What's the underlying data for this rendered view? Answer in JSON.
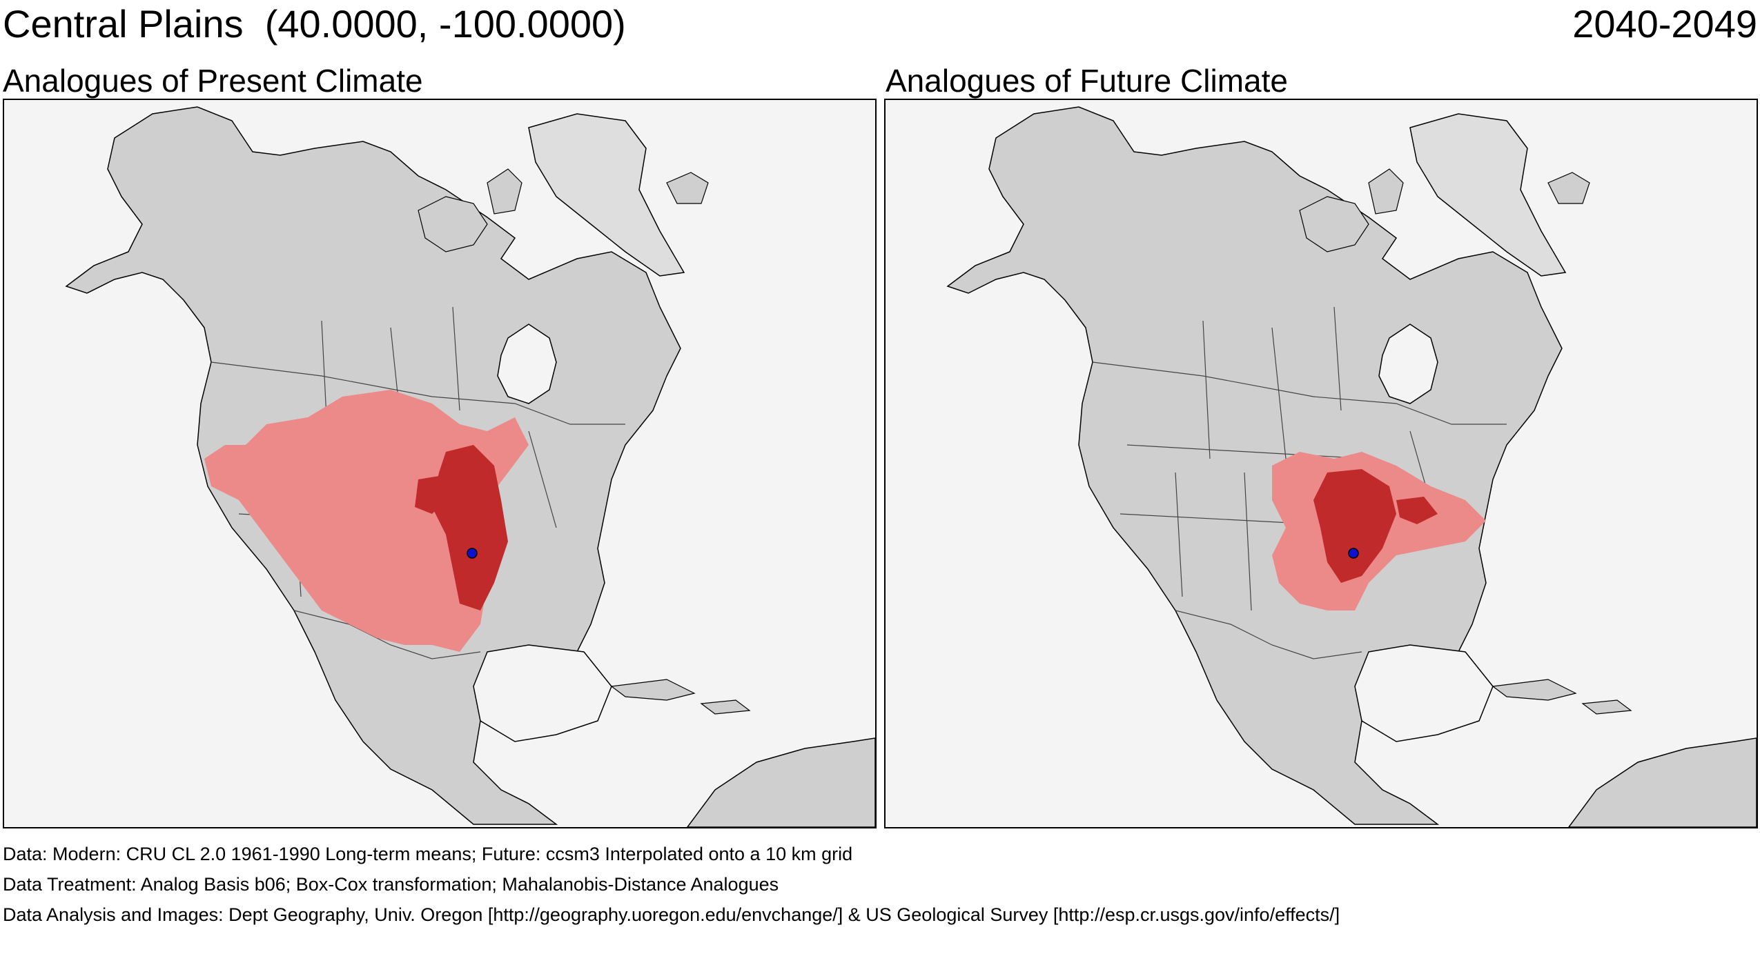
{
  "header": {
    "location_title": "Central Plains  (40.0000, -100.0000)",
    "period": "2040-2049"
  },
  "panels": [
    {
      "label": "Analogues of Present Climate"
    },
    {
      "label": "Analogues of Future Climate"
    }
  ],
  "footer": {
    "data_line": "Data:  Modern: CRU CL 2.0 1961-1990 Long-term means; Future: ccsm3 Interpolated onto a 10 km grid",
    "treatment_line": "Data Treatment:  Analog Basis b06; Box-Cox transformation; Mahalanobis-Distance Analogues",
    "analysis_line": "Data Analysis and Images:  Dept Geography, Univ. Oregon [http://geography.uoregon.edu/envchange/] & US Geological Survey [http://esp.cr.usgs.gov/info/effects/]"
  },
  "colors": {
    "land": "#cfcfcf",
    "water": "#f4f4f4",
    "analog_light": "#ec8a8a",
    "analog_dark": "#c02a2a",
    "location_marker": "#1010d0",
    "border": "#000000"
  },
  "map_features": {
    "target_location": {
      "lat": 40.0,
      "lon": -100.0
    }
  }
}
